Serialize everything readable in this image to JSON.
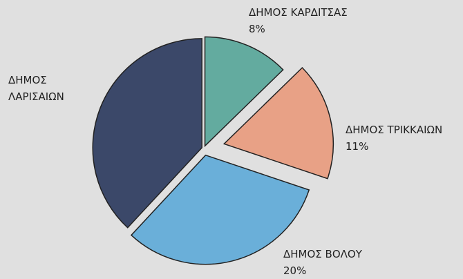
{
  "chart_data": {
    "type": "pie",
    "categories": [
      "ΔΗΜΟΣ ΚΑΡΔΙΤΣΑΣ",
      "ΔΗΜΟΣ ΤΡΙΚΚΑΙΩΝ",
      "ΔΗΜΟΣ ΒΟΛΟΥ",
      "ΔΗΜΟΣ ΛΑΡΙΣΑΙΩΝ"
    ],
    "values": [
      8,
      11,
      20,
      24
    ],
    "value_labels": [
      "8%",
      "11%",
      "20%",
      null
    ],
    "colors": [
      "#63ab9f",
      "#e8a186",
      "#6aafd9",
      "#3b4869"
    ]
  }
}
